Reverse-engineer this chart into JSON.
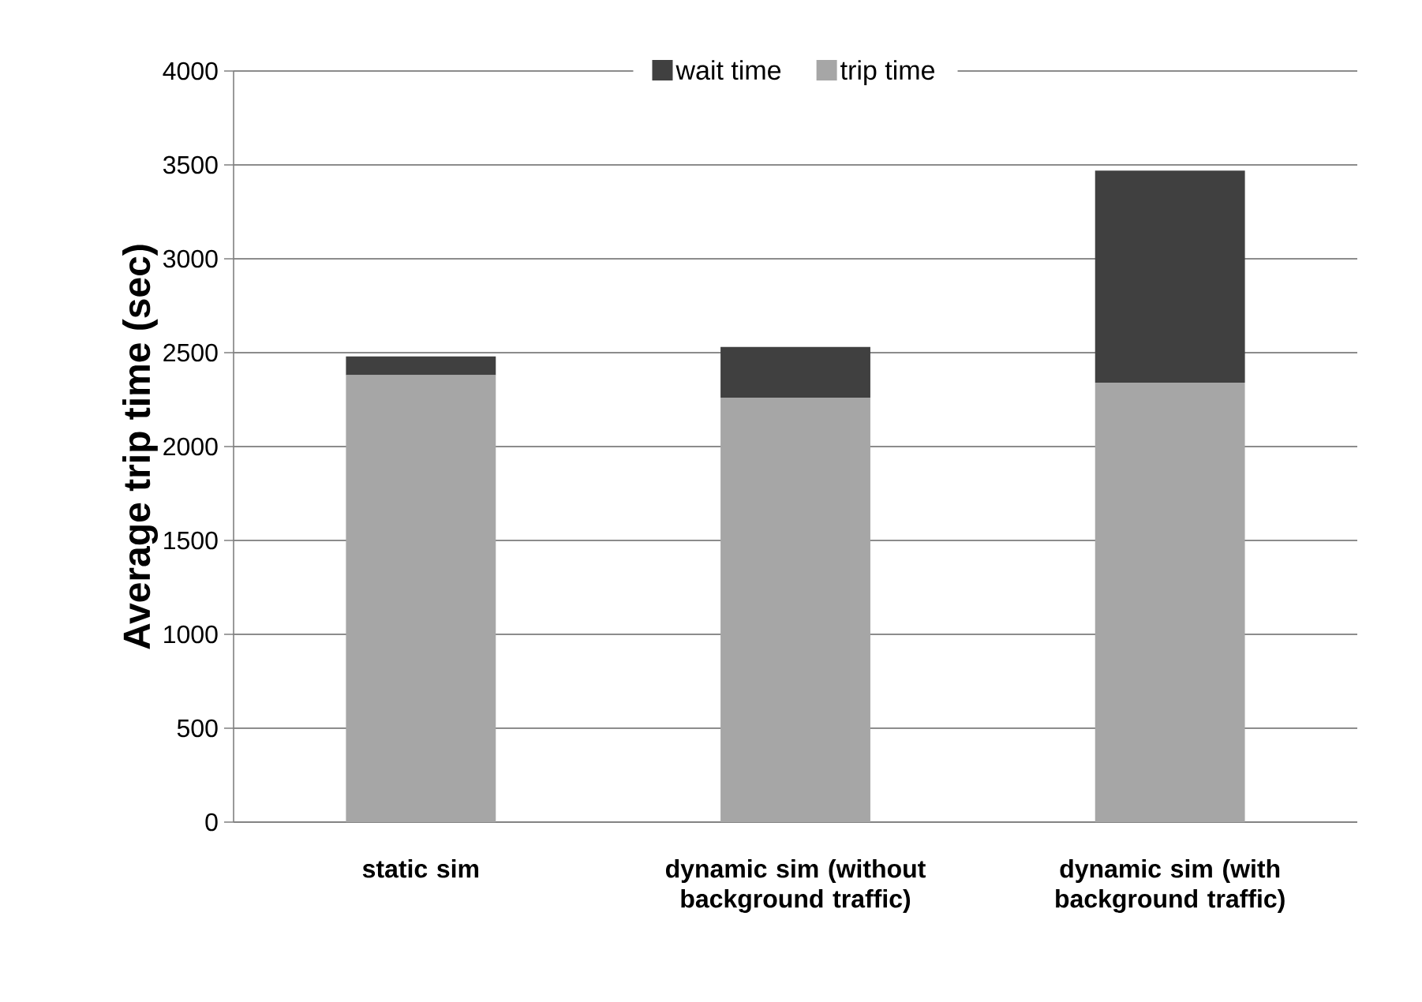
{
  "chart_data": {
    "type": "bar",
    "stacked": true,
    "ylabel": "Average trip time (sec)",
    "categories": [
      "static sim",
      "dynamic sim (without background traffic)",
      "dynamic sim (with background traffic)"
    ],
    "series": [
      {
        "name": "trip time",
        "color": "#a6a6a6",
        "values": [
          2380,
          2260,
          2340
        ]
      },
      {
        "name": "wait time",
        "color": "#404040",
        "values": [
          100,
          270,
          1130
        ]
      }
    ],
    "ylim": [
      0,
      4000
    ],
    "yticks": [
      0,
      500,
      1000,
      1500,
      2000,
      2500,
      3000,
      3500,
      4000
    ],
    "grid": "y",
    "legend": "top"
  }
}
